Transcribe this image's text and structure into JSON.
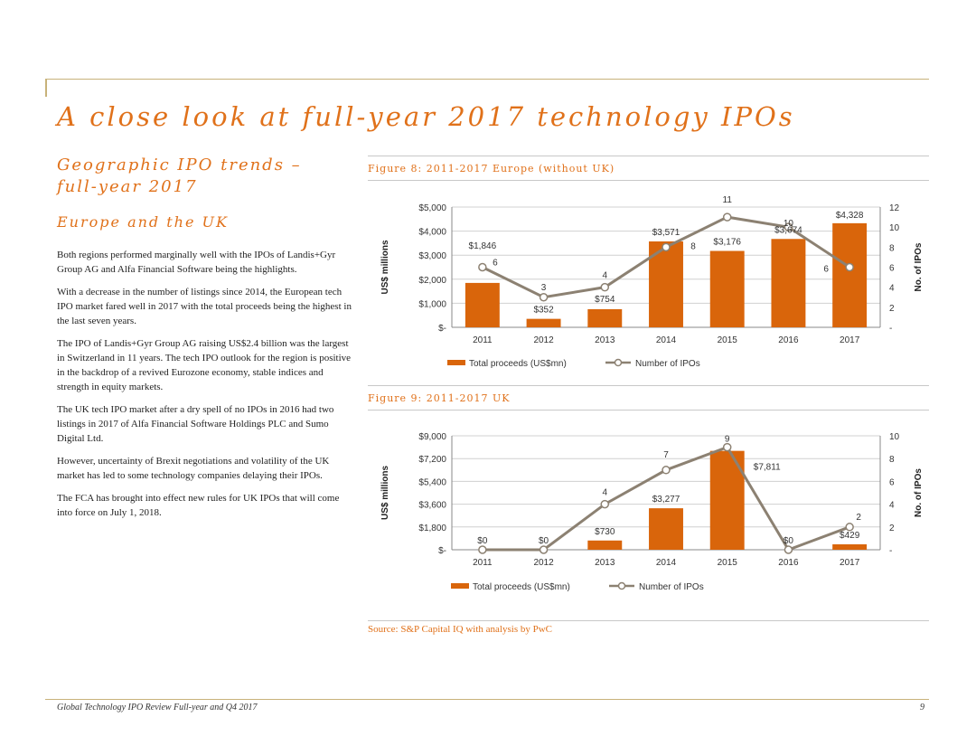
{
  "page": {
    "title": "A close look at full-year 2017 technology IPOs",
    "subtitle": "Geographic IPO trends – full-year 2017",
    "region_heading": "Europe and the UK",
    "paragraphs": [
      "Both regions performed marginally well with the IPOs of Landis+Gyr Group AG and Alfa Financial Software being the highlights.",
      "With a decrease in the number of listings since 2014, the European tech IPO market fared well in 2017 with the total proceeds being the highest in the last seven years.",
      "The IPO of Landis+Gyr Group AG raising US$2.4 billion was the largest in Switzerland in 11 years. The tech IPO outlook for the region is positive in the backdrop of a revived Eurozone economy, stable indices and strength in equity markets.",
      "The UK tech IPO market after a dry spell of no IPOs in 2016 had two listings in 2017 of Alfa Financial Software Holdings PLC and Sumo Digital Ltd.",
      "However, uncertainty of Brexit negotiations and volatility of the UK market has led to some technology companies delaying their IPOs.",
      "The FCA has brought into effect new rules for UK IPOs that will come into force on July 1, 2018."
    ],
    "source": "Source: S&P Capital IQ with analysis by PwC",
    "footer": "Global Technology IPO Review Full-year and Q4 2017",
    "page_number": "9"
  },
  "colors": {
    "accent": "#e0711a",
    "bar": "#d9650b",
    "line": "#8c8172"
  },
  "chart_data": [
    {
      "type": "bar+line",
      "figure_title": "Figure 8: 2011-2017 Europe (without UK)",
      "categories": [
        "2011",
        "2012",
        "2013",
        "2014",
        "2015",
        "2016",
        "2017"
      ],
      "series": [
        {
          "name": "Total proceeds (US$mn)",
          "kind": "bar",
          "axis": "left",
          "values": [
            1846,
            352,
            754,
            3571,
            3176,
            3674,
            4328
          ],
          "labels": [
            "$1,846",
            "$352",
            "$754",
            "$3,571",
            "$3,176",
            "$3,674",
            "$4,328"
          ]
        },
        {
          "name": "Number of IPOs",
          "kind": "line",
          "axis": "right",
          "values": [
            6,
            3,
            4,
            8,
            11,
            10,
            6
          ],
          "labels": [
            "6",
            "3",
            "4",
            "8",
            "11",
            "10",
            "6"
          ]
        }
      ],
      "ylabel": "US$ millions",
      "y2label": "No. of IPOs",
      "ylim": [
        0,
        5000
      ],
      "y2lim": [
        0,
        12
      ],
      "yticks": [
        0,
        1000,
        2000,
        3000,
        4000,
        5000
      ],
      "ytick_labels": [
        "$-",
        "$1,000",
        "$2,000",
        "$3,000",
        "$4,000",
        "$5,000"
      ],
      "y2ticks": [
        0,
        2,
        4,
        6,
        8,
        10,
        12
      ],
      "y2tick_labels": [
        "-",
        "2",
        "4",
        "6",
        "8",
        "10",
        "12"
      ],
      "legend": "bottom",
      "grid": true
    },
    {
      "type": "bar+line",
      "figure_title": "Figure 9: 2011-2017 UK",
      "categories": [
        "2011",
        "2012",
        "2013",
        "2014",
        "2015",
        "2016",
        "2017"
      ],
      "series": [
        {
          "name": "Total proceeds (US$mn)",
          "kind": "bar",
          "axis": "left",
          "values": [
            0,
            0,
            730,
            3277,
            7811,
            0,
            429
          ],
          "labels": [
            "$0",
            "$0",
            "$730",
            "$3,277",
            "$7,811",
            "$0",
            "$429"
          ]
        },
        {
          "name": "Number of IPOs",
          "kind": "line",
          "axis": "right",
          "values": [
            0,
            0,
            4,
            7,
            9,
            0,
            2
          ],
          "labels": [
            "",
            "",
            "4",
            "7",
            "9",
            "",
            "2"
          ]
        }
      ],
      "ylabel": "US$ millions",
      "y2label": "No. of IPOs",
      "ylim": [
        0,
        9000
      ],
      "y2lim": [
        0,
        10
      ],
      "yticks": [
        0,
        1800,
        3600,
        5400,
        7200,
        9000
      ],
      "ytick_labels": [
        "$-",
        "$1,800",
        "$3,600",
        "$5,400",
        "$7,200",
        "$9,000"
      ],
      "y2ticks": [
        0,
        2,
        4,
        6,
        8,
        10
      ],
      "y2tick_labels": [
        "-",
        "2",
        "4",
        "6",
        "8",
        "10"
      ],
      "legend": "bottom",
      "grid": true
    }
  ]
}
